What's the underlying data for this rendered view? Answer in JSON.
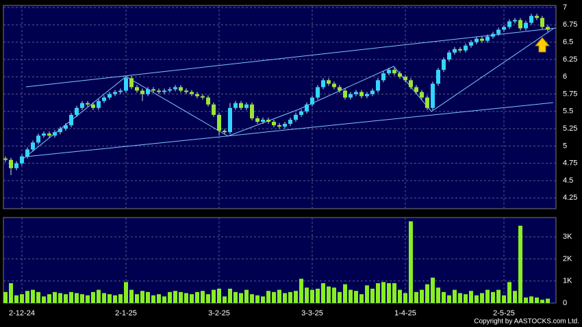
{
  "chart_data": [
    {
      "type": "candlestick",
      "categories": [
        null,
        null,
        null,
        "2-12-24",
        null,
        null,
        null,
        null,
        null,
        null,
        null,
        null,
        null,
        null,
        null,
        null,
        null,
        null,
        null,
        null,
        null,
        null,
        "2-1-25",
        null,
        null,
        null,
        null,
        null,
        null,
        null,
        null,
        null,
        null,
        null,
        null,
        null,
        null,
        null,
        null,
        "3-2-25",
        null,
        null,
        null,
        null,
        null,
        null,
        null,
        null,
        null,
        null,
        null,
        null,
        null,
        null,
        null,
        null,
        "3-3-25",
        null,
        null,
        null,
        null,
        null,
        null,
        null,
        null,
        null,
        null,
        null,
        null,
        null,
        null,
        null,
        null,
        "1-4-25",
        null,
        null,
        null,
        null,
        null,
        null,
        null,
        null,
        null,
        null,
        null,
        null,
        null,
        null,
        null,
        null,
        null,
        "2-5-25",
        null,
        null,
        null,
        null,
        null,
        null,
        null,
        null
      ],
      "open": [
        4.82,
        4.8,
        4.68,
        4.75,
        4.85,
        4.95,
        5.05,
        5.15,
        5.18,
        5.15,
        5.2,
        5.25,
        5.3,
        5.45,
        5.55,
        5.62,
        5.6,
        5.55,
        5.65,
        5.7,
        5.75,
        5.78,
        5.8,
        5.98,
        5.85,
        5.8,
        5.75,
        5.82,
        5.8,
        5.78,
        5.8,
        5.82,
        5.85,
        5.8,
        5.78,
        5.75,
        5.72,
        5.7,
        5.6,
        5.45,
        5.22,
        5.2,
        5.55,
        5.62,
        5.55,
        5.6,
        5.4,
        5.35,
        5.38,
        5.35,
        5.3,
        5.28,
        5.32,
        5.38,
        5.45,
        5.5,
        5.6,
        5.7,
        5.85,
        5.95,
        5.9,
        5.85,
        5.8,
        5.7,
        5.75,
        5.78,
        5.72,
        5.75,
        5.8,
        5.95,
        6.05,
        6.1,
        6.05,
        6.0,
        5.95,
        5.85,
        5.78,
        5.7,
        5.55,
        5.9,
        6.1,
        6.25,
        6.35,
        6.4,
        6.38,
        6.45,
        6.5,
        6.55,
        6.52,
        6.58,
        6.62,
        6.68,
        6.72,
        6.8,
        6.82,
        6.7,
        6.78,
        6.88,
        6.85,
        6.72
      ],
      "high": [
        4.85,
        4.83,
        4.78,
        4.88,
        4.98,
        5.08,
        5.18,
        5.21,
        5.21,
        5.23,
        5.28,
        5.33,
        5.48,
        5.58,
        5.65,
        5.65,
        5.63,
        5.68,
        5.73,
        5.78,
        5.81,
        5.83,
        6.0,
        6.01,
        5.88,
        5.83,
        5.85,
        5.85,
        5.83,
        5.83,
        5.85,
        5.88,
        5.88,
        5.83,
        5.81,
        5.78,
        5.75,
        5.73,
        5.63,
        5.48,
        5.25,
        5.62,
        5.65,
        5.65,
        5.63,
        5.63,
        5.43,
        5.41,
        5.41,
        5.38,
        5.33,
        5.35,
        5.41,
        5.48,
        5.53,
        5.63,
        5.73,
        5.88,
        5.98,
        5.98,
        5.93,
        5.88,
        5.83,
        5.78,
        5.81,
        5.81,
        5.78,
        5.83,
        5.98,
        6.08,
        6.13,
        6.13,
        6.08,
        6.03,
        5.98,
        5.88,
        5.81,
        5.73,
        5.93,
        6.13,
        6.28,
        6.38,
        6.43,
        6.43,
        6.48,
        6.53,
        6.58,
        6.58,
        6.61,
        6.65,
        6.71,
        6.75,
        6.83,
        6.85,
        6.85,
        6.81,
        6.91,
        6.91,
        6.88,
        6.75
      ],
      "low": [
        4.77,
        4.58,
        4.65,
        4.72,
        4.82,
        4.92,
        5.02,
        5.12,
        5.12,
        5.12,
        5.17,
        5.22,
        5.27,
        5.42,
        5.52,
        5.57,
        5.52,
        5.52,
        5.62,
        5.67,
        5.72,
        5.75,
        5.77,
        5.82,
        5.77,
        5.65,
        5.72,
        5.77,
        5.75,
        5.75,
        5.77,
        5.79,
        5.77,
        5.75,
        5.72,
        5.69,
        5.67,
        5.57,
        5.42,
        5.15,
        5.17,
        5.17,
        5.52,
        5.52,
        5.52,
        5.37,
        5.32,
        5.32,
        5.32,
        5.27,
        5.25,
        5.25,
        5.29,
        5.35,
        5.42,
        5.47,
        5.57,
        5.67,
        5.82,
        5.87,
        5.82,
        5.77,
        5.67,
        5.67,
        5.72,
        5.69,
        5.69,
        5.72,
        5.77,
        5.92,
        6.02,
        6.02,
        5.97,
        5.92,
        5.82,
        5.75,
        5.67,
        5.52,
        5.52,
        5.87,
        6.07,
        6.22,
        6.32,
        6.35,
        6.35,
        6.42,
        6.47,
        6.49,
        6.49,
        6.55,
        6.59,
        6.65,
        6.69,
        6.77,
        6.67,
        6.67,
        6.75,
        6.82,
        6.69,
        6.65
      ],
      "close": [
        4.8,
        4.68,
        4.75,
        4.85,
        4.95,
        5.05,
        5.15,
        5.18,
        5.15,
        5.2,
        5.25,
        5.3,
        5.45,
        5.55,
        5.62,
        5.6,
        5.55,
        5.65,
        5.7,
        5.75,
        5.78,
        5.8,
        5.98,
        5.85,
        5.8,
        5.75,
        5.82,
        5.8,
        5.78,
        5.8,
        5.82,
        5.85,
        5.8,
        5.78,
        5.75,
        5.72,
        5.7,
        5.6,
        5.45,
        5.22,
        5.2,
        5.55,
        5.62,
        5.55,
        5.6,
        5.4,
        5.35,
        5.38,
        5.35,
        5.3,
        5.28,
        5.32,
        5.38,
        5.45,
        5.5,
        5.6,
        5.7,
        5.85,
        5.95,
        5.9,
        5.85,
        5.8,
        5.7,
        5.75,
        5.78,
        5.72,
        5.75,
        5.8,
        5.95,
        6.05,
        6.1,
        6.05,
        6.0,
        5.95,
        5.85,
        5.78,
        5.7,
        5.55,
        5.9,
        6.1,
        6.25,
        6.35,
        6.4,
        6.38,
        6.45,
        6.5,
        6.55,
        6.52,
        6.58,
        6.62,
        6.68,
        6.72,
        6.8,
        6.82,
        6.7,
        6.78,
        6.88,
        6.85,
        6.72,
        6.68
      ],
      "up_color": "#33d6ff",
      "down_color": "#99e633",
      "ylim": [
        4.095,
        7.03
      ],
      "yticks": [
        4.25,
        4.5,
        4.75,
        5,
        5.25,
        5.5,
        5.75,
        6,
        6.25,
        6.5,
        6.75,
        7
      ],
      "grid": true
    },
    {
      "type": "bar",
      "values": [
        500,
        900,
        350,
        400,
        550,
        600,
        500,
        300,
        400,
        500,
        450,
        400,
        500,
        450,
        400,
        350,
        500,
        600,
        450,
        400,
        350,
        400,
        950,
        600,
        400,
        550,
        500,
        350,
        400,
        300,
        500,
        550,
        500,
        450,
        400,
        500,
        550,
        400,
        600,
        650,
        300,
        650,
        500,
        450,
        600,
        400,
        350,
        300,
        550,
        500,
        600,
        450,
        500,
        550,
        1100,
        700,
        600,
        650,
        900,
        750,
        700,
        500,
        850,
        600,
        550,
        400,
        800,
        650,
        900,
        950,
        900,
        900,
        600,
        450,
        3700,
        500,
        600,
        850,
        1150,
        700,
        500,
        350,
        600,
        450,
        400,
        550,
        350,
        450,
        600,
        500,
        600,
        350,
        950,
        550,
        3500,
        250,
        300,
        250,
        150,
        200
      ],
      "color": "#88ee22",
      "ylim": [
        0,
        3870
      ],
      "yticks": [
        0,
        {
          "value": 1000,
          "label": "1K"
        },
        {
          "value": 2000,
          "label": "2K"
        },
        {
          "value": 3000,
          "label": "3K"
        }
      ],
      "grid": true
    }
  ],
  "copyright": "Copyright by AASTOCKS.com Ltd."
}
